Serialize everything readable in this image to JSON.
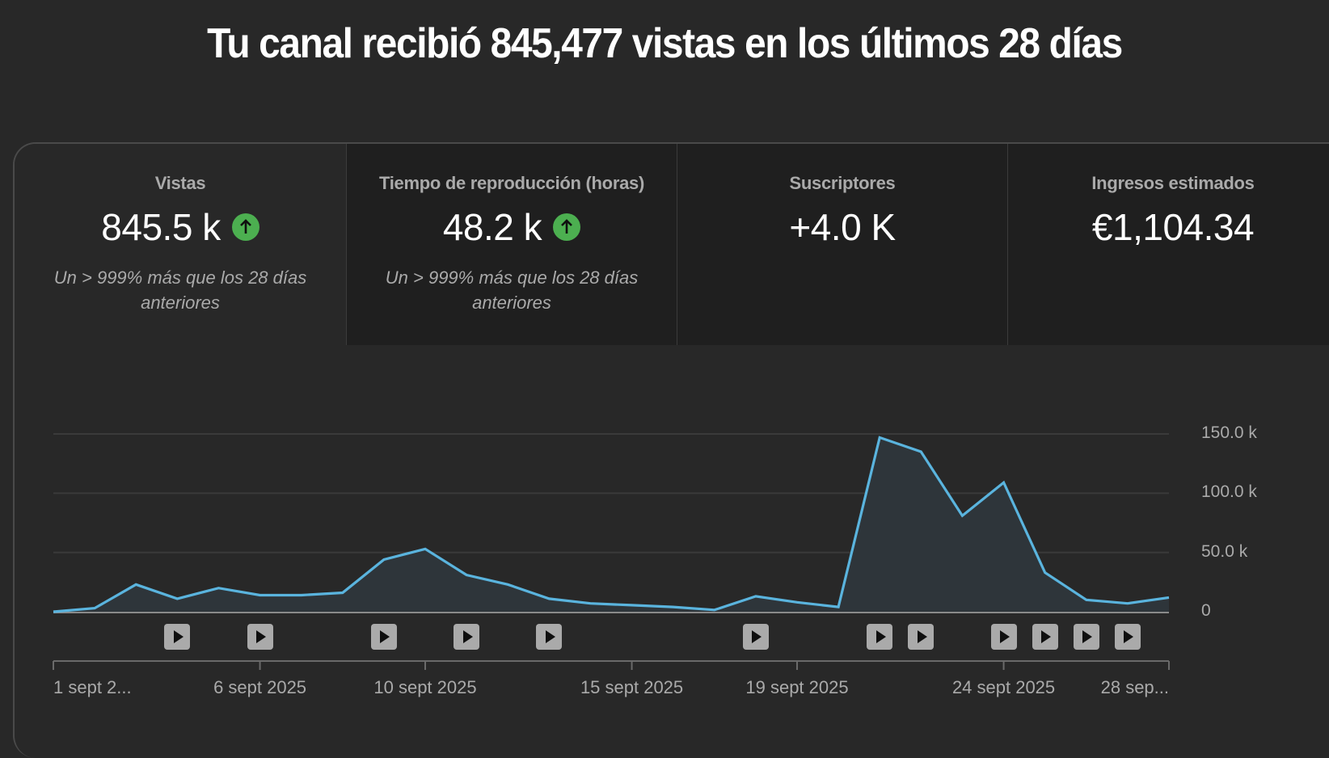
{
  "headline": "Tu canal recibió 845,477 vistas en los últimos 28 días",
  "tabs": [
    {
      "label": "Vistas",
      "value": "845.5 k",
      "trend": "up",
      "note": "Un > 999% más que los 28 días anteriores",
      "active": true
    },
    {
      "label": "Tiempo de reproducción (horas)",
      "value": "48.2 k",
      "trend": "up",
      "note": "Un > 999% más que los 28 días anteriores",
      "active": false
    },
    {
      "label": "Suscriptores",
      "value": "+4.0 K",
      "trend": null,
      "note": "",
      "active": false
    },
    {
      "label": "Ingresos estimados",
      "value": "€1,104.34",
      "trend": null,
      "note": "",
      "active": false
    }
  ],
  "colors": {
    "line": "#5ab4de",
    "fill": "#2e353a",
    "trend_up": "#4caf50",
    "gridline": "#3a3a3a",
    "background": "#282828",
    "tab_inactive": "#1f1f1f"
  },
  "chart_data": {
    "type": "area",
    "title": "Vistas",
    "xlabel": "",
    "ylabel": "",
    "ylim": [
      0,
      150000
    ],
    "y_ticks": [
      "0",
      "50.0 k",
      "100.0 k",
      "150.0 k"
    ],
    "y_axis_position": "right",
    "grid": true,
    "x": [
      "1 sept 2025",
      "2 sept 2025",
      "3 sept 2025",
      "4 sept 2025",
      "5 sept 2025",
      "6 sept 2025",
      "7 sept 2025",
      "8 sept 2025",
      "9 sept 2025",
      "10 sept 2025",
      "11 sept 2025",
      "12 sept 2025",
      "13 sept 2025",
      "14 sept 2025",
      "15 sept 2025",
      "16 sept 2025",
      "17 sept 2025",
      "18 sept 2025",
      "19 sept 2025",
      "20 sept 2025",
      "21 sept 2025",
      "22 sept 2025",
      "23 sept 2025",
      "24 sept 2025",
      "25 sept 2025",
      "26 sept 2025",
      "27 sept 2025",
      "28 sept 2025"
    ],
    "series": [
      {
        "name": "Vistas",
        "values": [
          0,
          3000,
          23000,
          11000,
          20000,
          14000,
          14000,
          16000,
          44000,
          53000,
          31000,
          23000,
          11000,
          7000,
          5500,
          4000,
          1500,
          13000,
          8000,
          4000,
          147000,
          135000,
          81000,
          109000,
          33000,
          10000,
          7000,
          12000
        ]
      }
    ],
    "x_tick_labels": [
      {
        "label": "1 sept 2...",
        "day": 1
      },
      {
        "label": "6 sept 2025",
        "day": 6
      },
      {
        "label": "10 sept 2025",
        "day": 10
      },
      {
        "label": "15 sept 2025",
        "day": 15
      },
      {
        "label": "19 sept 2025",
        "day": 19
      },
      {
        "label": "24 sept 2025",
        "day": 24
      },
      {
        "label": "28 sep...",
        "day": 28
      }
    ],
    "video_markers_days": [
      4,
      6,
      9,
      11,
      13,
      18,
      21,
      22,
      24,
      25,
      26,
      27
    ]
  }
}
